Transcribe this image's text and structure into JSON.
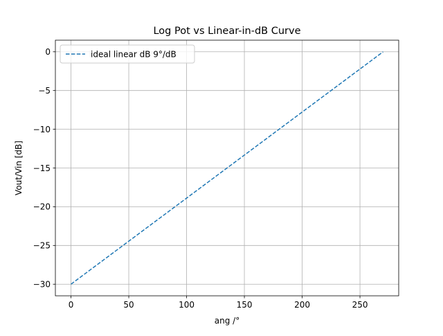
{
  "chart_data": {
    "type": "line",
    "title": "Log Pot vs Linear-in-dB Curve",
    "xlabel": "ang /°",
    "ylabel": "Vout/Vin [dB]",
    "xlim": [
      -13.5,
      283.5
    ],
    "ylim": [
      -31.5,
      1.5
    ],
    "xticks": [
      0,
      50,
      100,
      150,
      200,
      250
    ],
    "yticks": [
      0,
      -5,
      -10,
      -15,
      -20,
      -25,
      -30
    ],
    "grid": true,
    "legend_placement": "upper-left",
    "series": [
      {
        "name": "ideal linear dB 9°/dB",
        "style": "dashed",
        "color": "#1f77b4",
        "x": [
          0,
          270
        ],
        "y": [
          -30,
          0
        ]
      }
    ]
  }
}
